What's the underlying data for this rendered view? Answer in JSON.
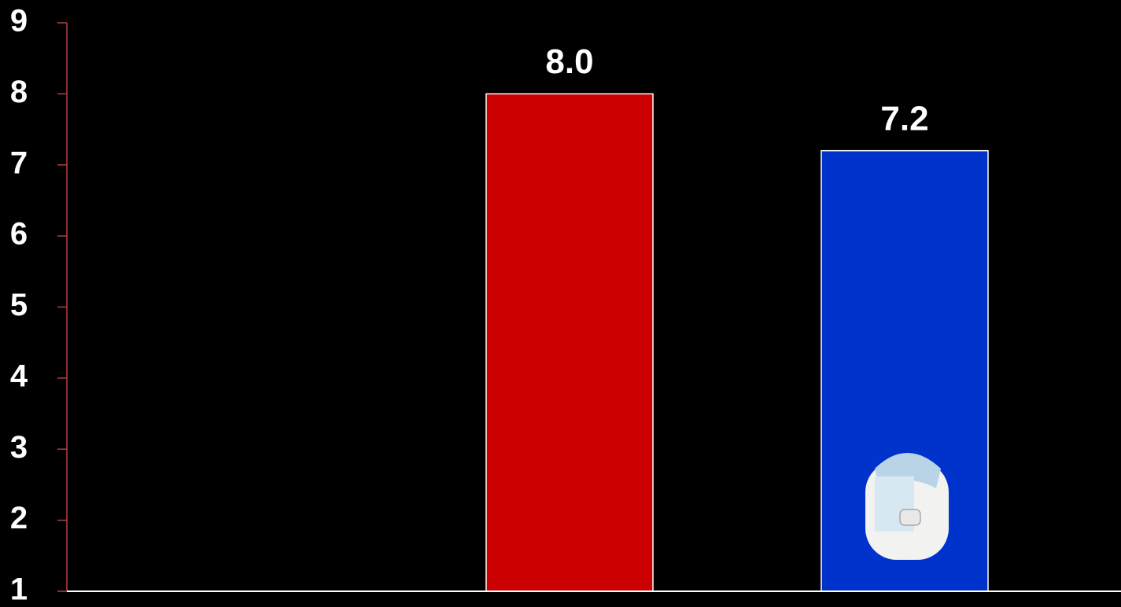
{
  "chart_data": {
    "type": "bar",
    "categories": [
      null,
      null,
      null
    ],
    "values": [
      null,
      8.0,
      7.2
    ],
    "value_labels": [
      null,
      "8.0",
      "7.2"
    ],
    "colors": [
      "#cc0000",
      "#cc0000",
      "#0033cc"
    ],
    "ylim": [
      1,
      9
    ],
    "yticks": [
      1,
      2,
      3,
      4,
      5,
      6,
      7,
      8,
      9
    ],
    "grid": false
  }
}
